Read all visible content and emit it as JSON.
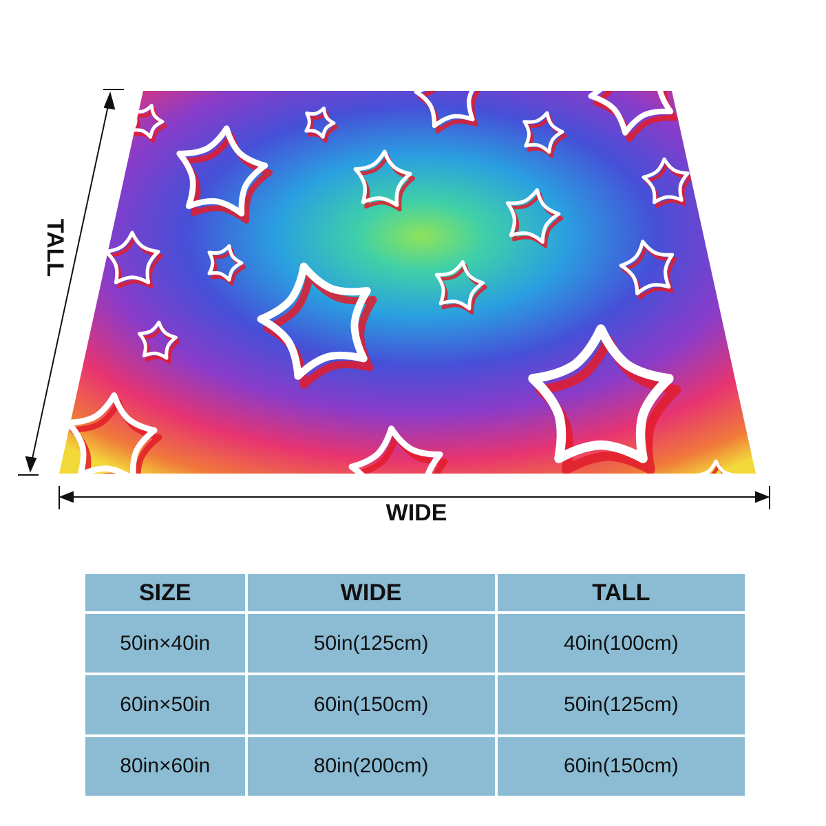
{
  "dimensions": {
    "wide_label": "WIDE",
    "tall_label": "TALL"
  },
  "blanket": {
    "pattern": "rainbow gradient with white outlined stars",
    "colors": {
      "center": "#7ee26a",
      "mid": "#2fb7d8",
      "outer": "#4b4bd6",
      "edge_warm": "#e8336b",
      "corner_yellow": "#f2d93a",
      "star_stroke": "#ffffff",
      "star_shadow": "#e21c2a"
    }
  },
  "size_table": {
    "headers": [
      "SIZE",
      "WIDE",
      "TALL"
    ],
    "rows": [
      [
        "50in×40in",
        "50in(125cm)",
        "40in(100cm)"
      ],
      [
        "60in×50in",
        "60in(150cm)",
        "50in(125cm)"
      ],
      [
        "80in×60in",
        "80in(200cm)",
        "60in(150cm)"
      ]
    ]
  }
}
